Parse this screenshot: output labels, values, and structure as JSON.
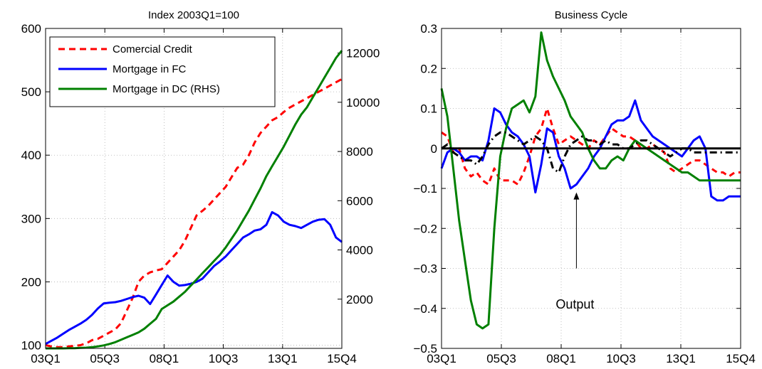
{
  "chart_data": [
    {
      "type": "line",
      "title": "Index 2003Q1=100",
      "x_tick_labels": [
        "03Q1",
        "05Q3",
        "08Q1",
        "10Q3",
        "13Q1",
        "15Q4"
      ],
      "x_count": 52,
      "ylim": [
        95,
        600
      ],
      "y_ticks": [
        100,
        200,
        300,
        400,
        500,
        600
      ],
      "y2lim": [
        0,
        13000
      ],
      "y2_ticks": [
        2000,
        4000,
        6000,
        8000,
        10000,
        12000
      ],
      "legend_position": "top-left",
      "series": [
        {
          "name": "Comercial Credit",
          "color": "#ff0000",
          "dash": "9 6",
          "axis": "left",
          "values": [
            100,
            98,
            97,
            97,
            98,
            99,
            100,
            103,
            108,
            110,
            115,
            120,
            125,
            135,
            155,
            175,
            200,
            210,
            215,
            218,
            220,
            230,
            240,
            250,
            265,
            285,
            305,
            312,
            320,
            330,
            340,
            350,
            365,
            380,
            385,
            400,
            420,
            435,
            445,
            455,
            460,
            468,
            475,
            480,
            485,
            490,
            495,
            500,
            505,
            510,
            515,
            520
          ]
        },
        {
          "name": "Mortgage in FC",
          "color": "#0000ff",
          "dash": "",
          "axis": "left",
          "values": [
            102,
            107,
            112,
            118,
            124,
            129,
            134,
            140,
            148,
            158,
            166,
            167,
            168,
            170,
            173,
            176,
            178,
            175,
            165,
            180,
            195,
            210,
            200,
            194,
            195,
            197,
            200,
            205,
            215,
            225,
            232,
            240,
            250,
            260,
            270,
            275,
            281,
            283,
            290,
            310,
            305,
            295,
            290,
            288,
            285,
            290,
            295,
            298,
            299,
            290,
            270,
            263
          ]
        },
        {
          "name": "Mortgage in DC (RHS)",
          "color": "#008000",
          "dash": "",
          "axis": "right",
          "values": [
            0,
            0,
            0,
            0,
            5,
            10,
            20,
            30,
            50,
            80,
            120,
            180,
            250,
            350,
            450,
            550,
            650,
            800,
            1000,
            1200,
            1600,
            1750,
            1900,
            2100,
            2300,
            2550,
            2800,
            3050,
            3300,
            3550,
            3800,
            4100,
            4450,
            4800,
            5200,
            5600,
            6050,
            6500,
            7000,
            7400,
            7800,
            8200,
            8650,
            9100,
            9500,
            9800,
            10200,
            10600,
            11000,
            11400,
            11800,
            12100
          ]
        }
      ]
    },
    {
      "type": "line",
      "title": "Business Cycle",
      "x_tick_labels": [
        "03Q1",
        "05Q3",
        "08Q1",
        "10Q3",
        "13Q1",
        "15Q4"
      ],
      "x_count": 52,
      "ylim": [
        -0.5,
        0.3
      ],
      "y_ticks": [
        -0.5,
        -0.4,
        -0.3,
        -0.2,
        -0.1,
        0,
        0.1,
        0.2,
        0.3
      ],
      "y_tick_labels": [
        "−0.5",
        "−0.4",
        "−0.3",
        "−0.2",
        "−0.1",
        "0",
        "0.1",
        "0.2",
        "0.3"
      ],
      "zero_line": true,
      "annotation": {
        "text": "Output",
        "x_index": 23,
        "y": -0.39,
        "arrow_to_y": -0.11
      },
      "series": [
        {
          "color": "#ff0000",
          "dash": "8 6",
          "values": [
            0.04,
            0.03,
            -0.01,
            0,
            -0.05,
            -0.07,
            -0.06,
            -0.08,
            -0.09,
            -0.05,
            -0.08,
            -0.08,
            -0.08,
            -0.09,
            -0.06,
            -0.02,
            0.03,
            0.05,
            0.1,
            0.05,
            0.01,
            0.02,
            0.03,
            0.02,
            0.01,
            0,
            0.02,
            0.01,
            0.03,
            0.05,
            0.04,
            0.03,
            0.03,
            0.02,
            0,
            0,
            0.01,
            0,
            -0.01,
            -0.05,
            -0.06,
            -0.05,
            -0.04,
            -0.03,
            -0.03,
            -0.04,
            -0.05,
            -0.06,
            -0.06,
            -0.07,
            -0.06,
            -0.06
          ]
        },
        {
          "color": "#0000ff",
          "dash": "",
          "values": [
            -0.05,
            -0.01,
            0,
            -0.01,
            -0.03,
            -0.02,
            -0.02,
            -0.03,
            0.02,
            0.1,
            0.09,
            0.06,
            0.04,
            0.03,
            0.01,
            -0.02,
            -0.11,
            -0.04,
            0.05,
            0.04,
            -0.02,
            -0.05,
            -0.1,
            -0.09,
            -0.07,
            -0.05,
            -0.02,
            0,
            0.03,
            0.06,
            0.07,
            0.07,
            0.08,
            0.12,
            0.07,
            0.05,
            0.03,
            0.02,
            0.01,
            0,
            -0.01,
            -0.02,
            0,
            0.02,
            0.03,
            0,
            -0.12,
            -0.13,
            -0.13,
            -0.12,
            -0.12,
            -0.12
          ]
        },
        {
          "color": "#008000",
          "dash": "",
          "values": [
            0.15,
            0.08,
            -0.05,
            -0.18,
            -0.28,
            -0.38,
            -0.44,
            -0.45,
            -0.44,
            -0.2,
            -0.02,
            0.05,
            0.1,
            0.11,
            0.12,
            0.09,
            0.13,
            0.29,
            0.22,
            0.18,
            0.15,
            0.12,
            0.08,
            0.06,
            0.04,
            0,
            -0.03,
            -0.05,
            -0.05,
            -0.03,
            -0.02,
            -0.03,
            0,
            0.02,
            0.01,
            0,
            -0.01,
            -0.02,
            -0.03,
            -0.04,
            -0.05,
            -0.06,
            -0.06,
            -0.07,
            -0.08,
            -0.08,
            -0.08,
            -0.08,
            -0.08,
            -0.08,
            -0.08,
            -0.08
          ]
        },
        {
          "color": "#000000",
          "dash": "10 5 2 5",
          "values": [
            0,
            0.01,
            -0.01,
            -0.02,
            -0.03,
            -0.03,
            -0.04,
            -0.02,
            0.01,
            0.03,
            0.04,
            0.04,
            0.03,
            0.02,
            0.01,
            0.02,
            0.03,
            0.02,
            0,
            -0.05,
            -0.06,
            -0.02,
            0.01,
            0.02,
            0.03,
            0.02,
            0.02,
            0.01,
            0.02,
            0.01,
            0.01,
            0,
            0,
            0.01,
            0.02,
            0.02,
            0.01,
            0,
            -0.01,
            -0.02,
            -0.01,
            0,
            0,
            -0.01,
            -0.01,
            -0.01,
            -0.01,
            -0.01,
            -0.01,
            -0.01,
            -0.01,
            -0.01
          ]
        }
      ]
    }
  ]
}
